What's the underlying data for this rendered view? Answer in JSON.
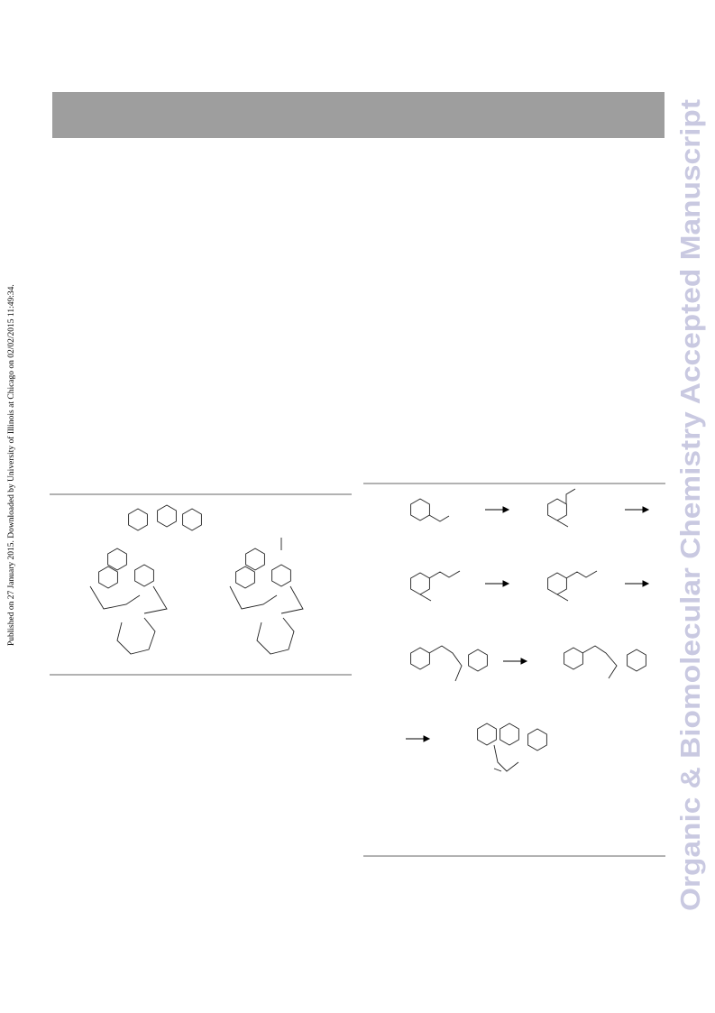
{
  "side_note": "Published on 27 January 2015. Downloaded by University of Illinois at Chicago on 02/02/2015 11:49:34.",
  "watermark": "Organic & Biomolecular Chemistry Accepted Manuscript"
}
